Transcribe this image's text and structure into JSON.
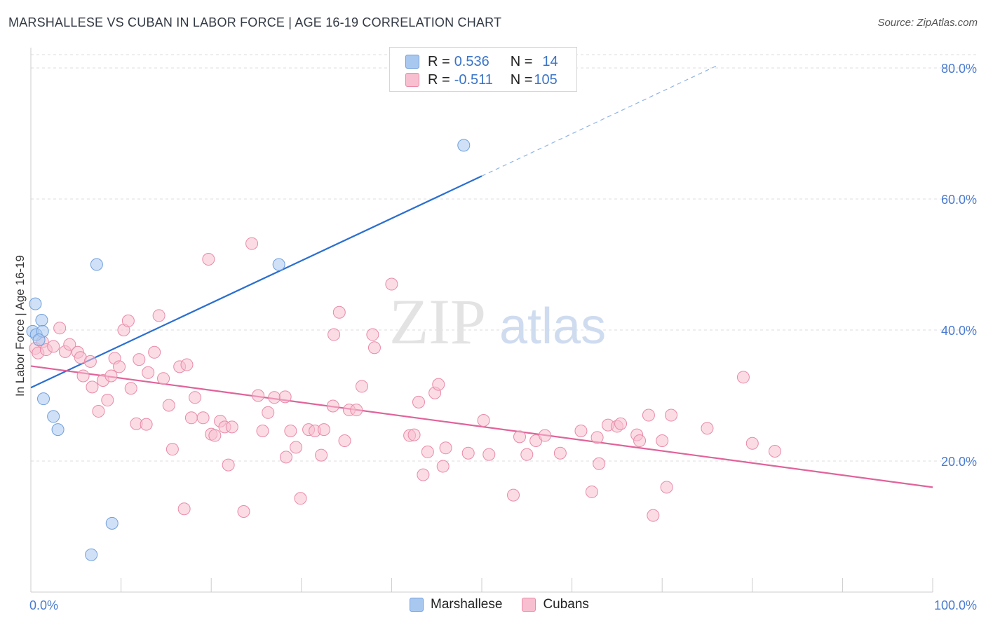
{
  "title": "MARSHALLESE VS CUBAN IN LABOR FORCE | AGE 16-19 CORRELATION CHART",
  "source": "Source: ZipAtlas.com",
  "watermark": {
    "zip": "ZIP",
    "atlas": "atlas"
  },
  "legend": {
    "rows": [
      {
        "r_label": "R = ",
        "r_value": "0.536",
        "n_label": "N = ",
        "n_value": "14",
        "color": "#a9c8f0",
        "border": "#6f9fdc"
      },
      {
        "r_label": "R = ",
        "r_value": "-0.511",
        "n_label": "N = ",
        "n_value": "105",
        "color": "#f7bfd0",
        "border": "#e98aa8"
      }
    ]
  },
  "bottom_legend": [
    {
      "label": "Marshallese",
      "color": "#a9c8f0",
      "border": "#6f9fdc"
    },
    {
      "label": "Cubans",
      "color": "#f7bfd0",
      "border": "#e98aa8"
    }
  ],
  "chart_data": {
    "type": "scatter",
    "ylabel": "In Labor Force | Age 16-19",
    "xlabel": "",
    "xlim": [
      0,
      100
    ],
    "ylim": [
      0,
      82
    ],
    "x_tick_labels": [
      "0.0%",
      "100.0%"
    ],
    "y_ticks": [
      20,
      40,
      60,
      80
    ],
    "y_tick_labels": [
      "20.0%",
      "40.0%",
      "60.0%",
      "80.0%"
    ],
    "grid": true,
    "series": [
      {
        "name": "Marshallese",
        "color": "#6f9fdc",
        "fill": "#a9c8f0",
        "trend_color": "#2a6fd0",
        "points": [
          [
            0.5,
            44.0
          ],
          [
            0.2,
            39.8
          ],
          [
            0.6,
            39.3
          ],
          [
            1.2,
            41.5
          ],
          [
            1.3,
            39.8
          ],
          [
            0.9,
            38.5
          ],
          [
            1.4,
            29.5
          ],
          [
            2.5,
            26.8
          ],
          [
            3.0,
            24.8
          ],
          [
            7.3,
            50.0
          ],
          [
            27.5,
            50.0
          ],
          [
            9.0,
            10.5
          ],
          [
            6.7,
            5.7
          ],
          [
            48.0,
            68.2
          ]
        ],
        "trend": {
          "x0": 0,
          "y0": 31.2,
          "x1": 50,
          "y1": 63.5,
          "x_dash_end": 76,
          "y_dash_end": 80.3
        }
      },
      {
        "name": "Cubans",
        "color": "#e98aa8",
        "fill": "#f7bfd0",
        "trend_color": "#e0639a",
        "points": [
          [
            0.5,
            37.2
          ],
          [
            0.8,
            36.5
          ],
          [
            1.3,
            38.2
          ],
          [
            1.7,
            37.0
          ],
          [
            2.5,
            37.5
          ],
          [
            3.2,
            40.3
          ],
          [
            3.8,
            36.7
          ],
          [
            4.3,
            37.8
          ],
          [
            5.2,
            36.6
          ],
          [
            5.5,
            35.8
          ],
          [
            5.8,
            33.0
          ],
          [
            6.6,
            35.2
          ],
          [
            6.8,
            31.3
          ],
          [
            7.5,
            27.6
          ],
          [
            8.0,
            32.3
          ],
          [
            8.5,
            29.3
          ],
          [
            8.9,
            33.0
          ],
          [
            9.3,
            35.7
          ],
          [
            9.8,
            34.4
          ],
          [
            10.3,
            40.0
          ],
          [
            10.8,
            41.4
          ],
          [
            11.1,
            31.1
          ],
          [
            11.7,
            25.7
          ],
          [
            12.0,
            35.5
          ],
          [
            12.8,
            25.6
          ],
          [
            13.0,
            33.5
          ],
          [
            13.7,
            36.6
          ],
          [
            14.2,
            42.2
          ],
          [
            14.7,
            32.6
          ],
          [
            15.3,
            28.5
          ],
          [
            15.7,
            21.8
          ],
          [
            16.5,
            34.4
          ],
          [
            17.0,
            12.7
          ],
          [
            17.3,
            34.7
          ],
          [
            17.8,
            26.6
          ],
          [
            18.2,
            29.7
          ],
          [
            19.1,
            26.6
          ],
          [
            19.7,
            50.8
          ],
          [
            20.0,
            24.1
          ],
          [
            20.4,
            23.9
          ],
          [
            21.0,
            26.1
          ],
          [
            21.5,
            25.2
          ],
          [
            21.9,
            19.4
          ],
          [
            22.3,
            25.2
          ],
          [
            23.6,
            12.3
          ],
          [
            24.5,
            53.2
          ],
          [
            25.2,
            30.0
          ],
          [
            25.7,
            24.6
          ],
          [
            26.3,
            27.4
          ],
          [
            27.0,
            29.7
          ],
          [
            28.2,
            29.8
          ],
          [
            28.3,
            20.6
          ],
          [
            28.8,
            24.6
          ],
          [
            29.4,
            22.1
          ],
          [
            29.9,
            14.3
          ],
          [
            30.8,
            24.8
          ],
          [
            31.5,
            24.6
          ],
          [
            32.2,
            20.9
          ],
          [
            32.5,
            24.8
          ],
          [
            33.5,
            28.4
          ],
          [
            33.6,
            39.3
          ],
          [
            34.2,
            42.7
          ],
          [
            34.8,
            23.1
          ],
          [
            35.3,
            27.8
          ],
          [
            36.1,
            27.8
          ],
          [
            36.7,
            31.4
          ],
          [
            37.9,
            39.3
          ],
          [
            38.1,
            37.3
          ],
          [
            40.0,
            47.0
          ],
          [
            42.0,
            23.9
          ],
          [
            42.5,
            24.0
          ],
          [
            43.0,
            29.0
          ],
          [
            43.5,
            17.9
          ],
          [
            44.0,
            21.4
          ],
          [
            44.8,
            30.4
          ],
          [
            45.2,
            31.7
          ],
          [
            45.7,
            19.2
          ],
          [
            46.0,
            22.0
          ],
          [
            48.5,
            21.2
          ],
          [
            50.2,
            26.2
          ],
          [
            50.8,
            21.0
          ],
          [
            53.5,
            14.8
          ],
          [
            54.2,
            23.7
          ],
          [
            55.0,
            21.0
          ],
          [
            56.0,
            23.1
          ],
          [
            57.0,
            23.9
          ],
          [
            58.7,
            21.2
          ],
          [
            61.0,
            24.6
          ],
          [
            62.2,
            15.3
          ],
          [
            62.8,
            23.6
          ],
          [
            63.0,
            19.6
          ],
          [
            64.0,
            25.5
          ],
          [
            65.0,
            25.3
          ],
          [
            65.4,
            25.7
          ],
          [
            67.2,
            24.0
          ],
          [
            67.5,
            23.1
          ],
          [
            68.5,
            27.0
          ],
          [
            69.0,
            11.7
          ],
          [
            70.0,
            23.1
          ],
          [
            70.5,
            16.0
          ],
          [
            71.0,
            27.0
          ],
          [
            75.0,
            25.0
          ],
          [
            79.0,
            32.8
          ],
          [
            80.0,
            22.7
          ],
          [
            82.5,
            21.5
          ]
        ],
        "trend": {
          "x0": 0,
          "y0": 34.5,
          "x1": 100,
          "y1": 16.0
        }
      }
    ]
  }
}
